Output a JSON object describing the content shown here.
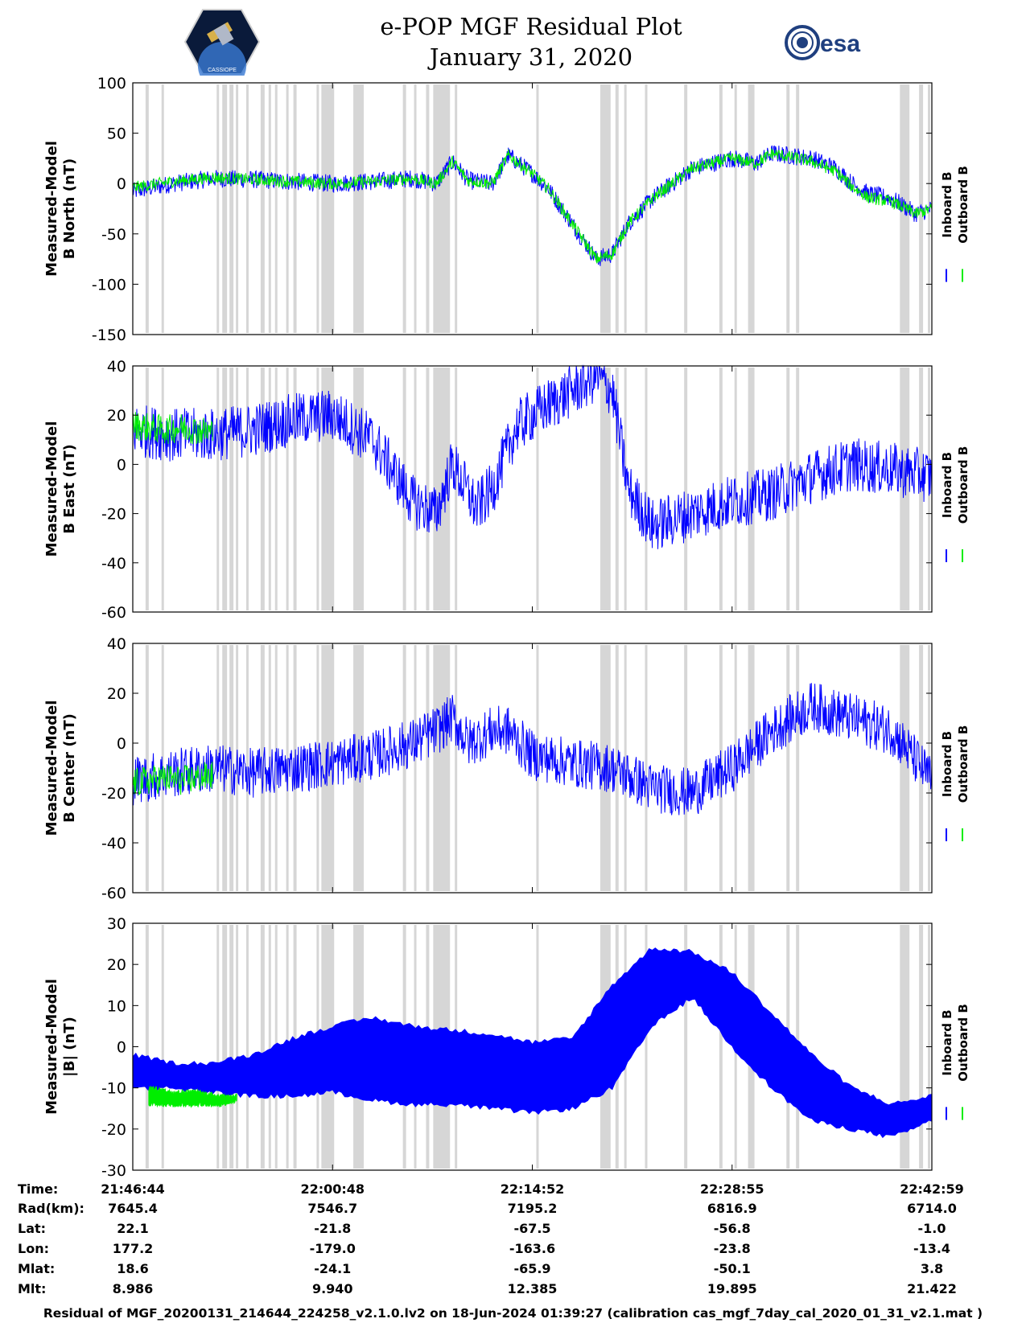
{
  "header": {
    "title": "e-POP MGF Residual Plot",
    "date": "January 31, 2020",
    "left_logo": "CASSIOPE",
    "right_logo": "esa"
  },
  "legend": {
    "inboard": "Inboard B",
    "outboard": "Outboard B"
  },
  "colors": {
    "inboard": "#0000ff",
    "outboard": "#00ee00",
    "gap": "#d6d6d6"
  },
  "chart_data": [
    {
      "type": "line",
      "ylabel_line1": "Measured-Model",
      "ylabel_line2": "B North (nT)",
      "ylim": [
        -150,
        100
      ],
      "yticks": [
        100,
        50,
        0,
        -50,
        -100,
        -150
      ],
      "series": [
        {
          "name": "Inboard B",
          "x": [
            0,
            0.05,
            0.1,
            0.15,
            0.2,
            0.25,
            0.3,
            0.35,
            0.38,
            0.4,
            0.42,
            0.45,
            0.47,
            0.5,
            0.52,
            0.55,
            0.58,
            0.6,
            0.62,
            0.65,
            0.7,
            0.75,
            0.78,
            0.8,
            0.85,
            0.88,
            0.9,
            0.92,
            0.95,
            0.98,
            1.0
          ],
          "y": [
            -8,
            0,
            5,
            4,
            2,
            0,
            2,
            5,
            0,
            22,
            3,
            0,
            28,
            10,
            -5,
            -40,
            -75,
            -70,
            -40,
            -15,
            15,
            25,
            20,
            30,
            25,
            15,
            0,
            -10,
            -15,
            -30,
            -25
          ],
          "noise": 9
        },
        {
          "name": "Outboard B",
          "x": [
            0,
            0.05,
            0.1,
            0.15,
            0.2,
            0.25,
            0.3,
            0.35,
            0.38,
            0.4,
            0.42,
            0.45,
            0.47,
            0.5,
            0.52,
            0.55,
            0.58,
            0.6,
            0.62,
            0.65,
            0.7,
            0.75,
            0.78,
            0.8,
            0.85,
            0.88,
            0.9,
            0.92,
            0.95,
            0.98,
            1.0
          ],
          "y": [
            -4,
            2,
            6,
            4,
            2,
            0,
            2,
            5,
            0,
            22,
            3,
            0,
            28,
            10,
            -5,
            -40,
            -75,
            -70,
            -40,
            -15,
            15,
            25,
            20,
            30,
            22,
            12,
            -3,
            -14,
            -18,
            -30,
            -25
          ],
          "noise": 6
        }
      ]
    },
    {
      "type": "line",
      "ylabel_line1": "Measured-Model",
      "ylabel_line2": "B East (nT)",
      "ylim": [
        -60,
        40
      ],
      "yticks": [
        40,
        20,
        0,
        -20,
        -40,
        -60
      ],
      "series": [
        {
          "name": "Inboard B",
          "x": [
            0,
            0.05,
            0.1,
            0.15,
            0.2,
            0.25,
            0.3,
            0.33,
            0.35,
            0.38,
            0.4,
            0.43,
            0.45,
            0.48,
            0.5,
            0.55,
            0.58,
            0.6,
            0.62,
            0.65,
            0.7,
            0.75,
            0.8,
            0.85,
            0.9,
            0.95,
            1.0
          ],
          "y": [
            14,
            12,
            12,
            14,
            18,
            20,
            10,
            -5,
            -15,
            -20,
            0,
            -18,
            -10,
            15,
            20,
            30,
            36,
            30,
            -10,
            -25,
            -20,
            -15,
            -12,
            -5,
            0,
            -2,
            -5
          ],
          "noise": 11
        },
        {
          "name": "Outboard B",
          "x": [
            0,
            0.02,
            0.04,
            0.06,
            0.08,
            0.1
          ],
          "y": [
            16,
            15,
            14,
            15,
            14,
            13
          ],
          "noise": 6
        }
      ]
    },
    {
      "type": "line",
      "ylabel_line1": "Measured-Model",
      "ylabel_line2": "B Center (nT)",
      "ylim": [
        -60,
        40
      ],
      "yticks": [
        40,
        20,
        0,
        -20,
        -40,
        -60
      ],
      "series": [
        {
          "name": "Inboard B",
          "x": [
            0,
            0.05,
            0.1,
            0.15,
            0.2,
            0.25,
            0.3,
            0.35,
            0.38,
            0.4,
            0.42,
            0.45,
            0.47,
            0.5,
            0.55,
            0.6,
            0.65,
            0.7,
            0.75,
            0.8,
            0.85,
            0.9,
            0.95,
            1.0
          ],
          "y": [
            -15,
            -12,
            -10,
            -12,
            -10,
            -8,
            -5,
            0,
            5,
            10,
            0,
            5,
            5,
            -5,
            -8,
            -10,
            -18,
            -20,
            -10,
            5,
            15,
            10,
            5,
            -15
          ],
          "noise": 10
        },
        {
          "name": "Outboard B",
          "x": [
            0,
            0.02,
            0.04,
            0.06,
            0.08,
            0.1
          ],
          "y": [
            -16,
            -15,
            -14,
            -15,
            -14,
            -13
          ],
          "noise": 6
        }
      ]
    },
    {
      "type": "area",
      "ylabel_line1": "Measured-Model",
      "ylabel_line2": "|B| (nT)",
      "ylim": [
        -30,
        30
      ],
      "yticks": [
        30,
        20,
        10,
        0,
        -10,
        -20,
        -30
      ],
      "series": [
        {
          "name": "Inboard B",
          "x": [
            0,
            0.05,
            0.1,
            0.15,
            0.2,
            0.25,
            0.3,
            0.35,
            0.4,
            0.45,
            0.5,
            0.55,
            0.6,
            0.65,
            0.7,
            0.75,
            0.8,
            0.85,
            0.9,
            0.95,
            1.0
          ],
          "upper": [
            -2,
            -4,
            -4,
            -2,
            2,
            5,
            7,
            5,
            4,
            3,
            1,
            2,
            15,
            24,
            23,
            18,
            8,
            -2,
            -10,
            -14,
            -12
          ],
          "lower": [
            -10,
            -10,
            -11,
            -12,
            -12,
            -11,
            -13,
            -14,
            -14,
            -15,
            -16,
            -15,
            -10,
            5,
            12,
            0,
            -10,
            -18,
            -20,
            -22,
            -18
          ]
        },
        {
          "name": "Outboard B",
          "x": [
            0.02,
            0.05,
            0.08,
            0.11,
            0.13
          ],
          "upper": [
            -10,
            -11,
            -11,
            -12,
            -12
          ],
          "lower": [
            -14,
            -14,
            -14,
            -14,
            -13
          ]
        }
      ]
    }
  ],
  "ephemeris": {
    "labels": [
      "Time:",
      "Rad(km):",
      "Lat:",
      "Lon:",
      "Mlat:",
      "Mlt:"
    ],
    "columns": [
      [
        "21:46:44",
        "7645.4",
        "22.1",
        "177.2",
        "18.6",
        "8.986"
      ],
      [
        "22:00:48",
        "7546.7",
        "-21.8",
        "-179.0",
        "-24.1",
        "9.940"
      ],
      [
        "22:14:52",
        "7195.2",
        "-67.5",
        "-163.6",
        "-65.9",
        "12.385"
      ],
      [
        "22:28:55",
        "6816.9",
        "-56.8",
        "-23.8",
        "-50.1",
        "19.895"
      ],
      [
        "22:42:59",
        "6714.0",
        "-1.0",
        "-13.4",
        "3.8",
        "21.422"
      ]
    ]
  },
  "footer": "Residual of MGF_20200131_214644_224258_v2.1.0.lv2 on 18-Jun-2024 01:39:27 (calibration cas_mgf_7day_cal_2020_01_31_v2.1.mat )"
}
